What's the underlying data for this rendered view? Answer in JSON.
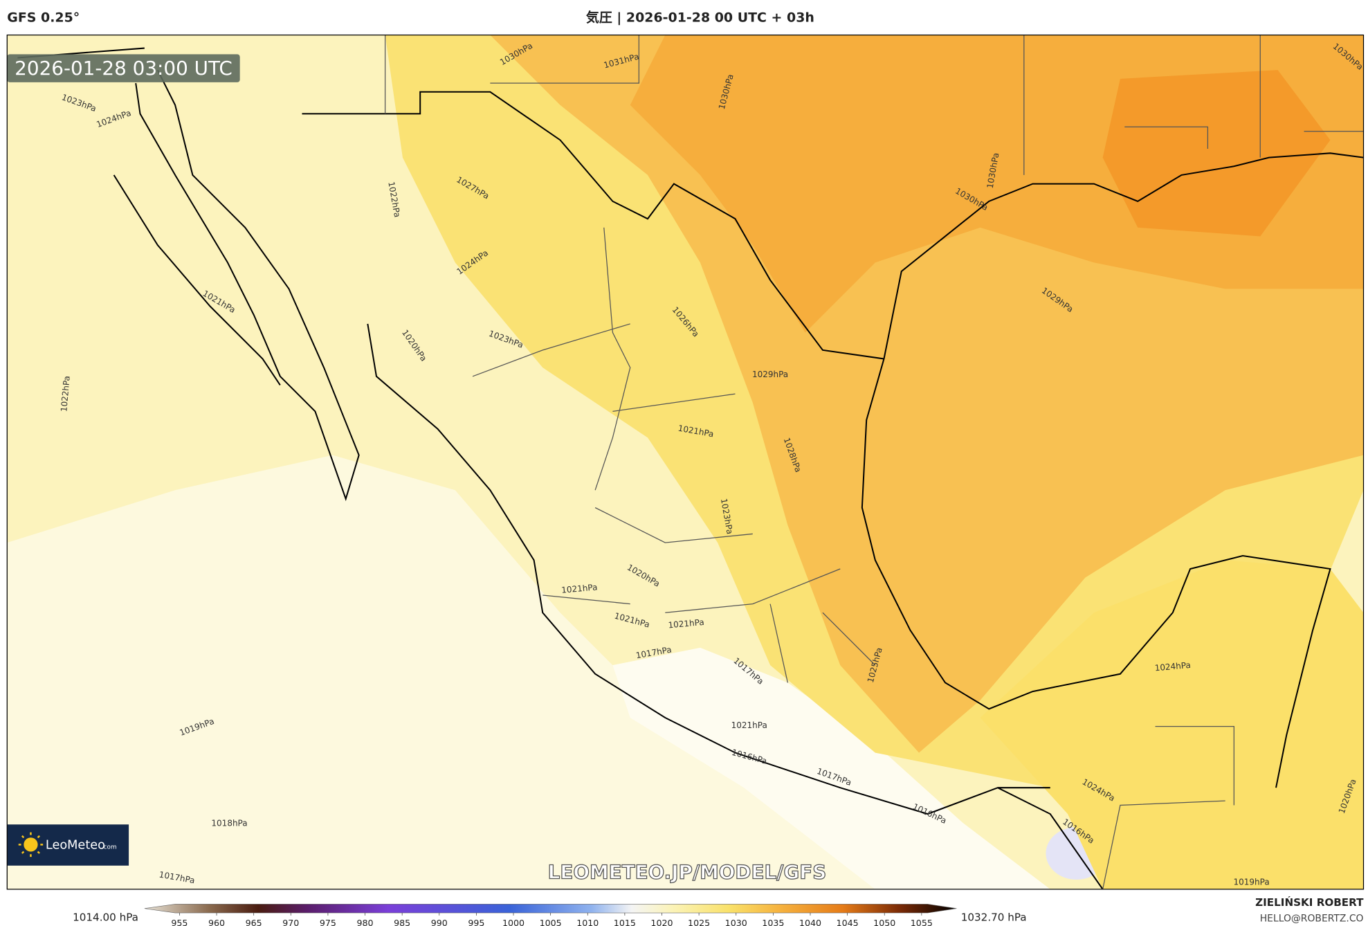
{
  "header": {
    "model": "GFS 0.25°",
    "title": "気圧 | 2026-01-28 00 UTC + 03h"
  },
  "map": {
    "timestamp": "2026-01-28 03:00 UTC",
    "watermark": "LEOMETEO.JP/MODEL/GFS",
    "logo": {
      "name": "LeoMeteo",
      "suffix": ".com"
    },
    "contour_labels": [
      "1030hPa",
      "1031hPa",
      "1030hPa",
      "1023hPa",
      "1024hPa",
      "1022hPa",
      "1027hPa",
      "1024hPa",
      "1021hPa",
      "1020hPa",
      "1023hPa",
      "1026hPa",
      "1029hPa",
      "1022hPa",
      "1021hPa",
      "1028hPa",
      "1023hPa",
      "1030hPa",
      "1030hPa",
      "1029hPa",
      "1030hPa",
      "1021hPa",
      "1020hPa",
      "1021hPa",
      "1021hPa",
      "1017hPa",
      "1017hPa",
      "1025hPa",
      "1024hPa",
      "1021hPa",
      "1019hPa",
      "1016hPa",
      "1017hPa",
      "1016hPa",
      "1024hPa",
      "1020hPa",
      "1016hPa",
      "1018hPa",
      "1017hPa",
      "1019hPa"
    ]
  },
  "colorbar": {
    "min_label": "1014.00 hPa",
    "max_label": "1032.70 hPa",
    "ticks": [
      955,
      960,
      965,
      970,
      975,
      980,
      985,
      990,
      995,
      1000,
      1005,
      1010,
      1015,
      1020,
      1025,
      1030,
      1035,
      1040,
      1045,
      1050,
      1055
    ]
  },
  "credits": {
    "author": "ZIELIŃSKI ROBERT",
    "email": "HELLO@ROBERTZ.CO"
  }
}
